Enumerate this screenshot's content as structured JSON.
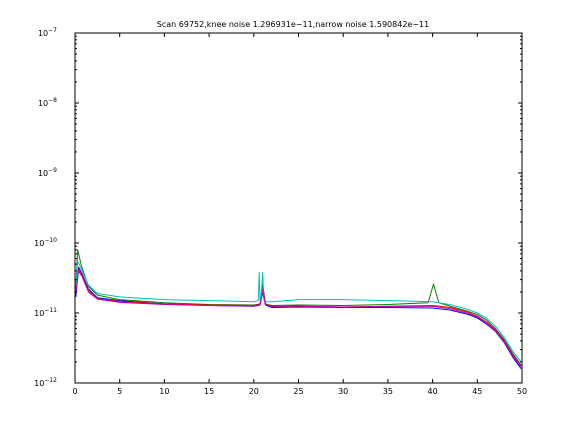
{
  "chart_data": {
    "type": "line",
    "title": "Scan 69752,knee noise 1.296931e−11,narrow noise 1.590842e−11",
    "xlabel": "",
    "ylabel": "",
    "xlim": [
      0,
      50
    ],
    "ylim": [
      1e-12,
      1e-07
    ],
    "yscale": "log",
    "grid": false,
    "x_ticks": [
      0,
      5,
      10,
      15,
      20,
      25,
      30,
      35,
      40,
      45,
      50
    ],
    "x_tick_labels": [
      "0",
      "5",
      "10",
      "15",
      "20",
      "25",
      "30",
      "35",
      "40",
      "45",
      "50"
    ],
    "y_ticks": [
      -12,
      -11,
      -10,
      -9,
      -8,
      -7
    ],
    "y_tick_labels": [
      {
        "base": "10",
        "exp": "−12"
      },
      {
        "base": "10",
        "exp": "−11"
      },
      {
        "base": "10",
        "exp": "−10"
      },
      {
        "base": "10",
        "exp": "−9"
      },
      {
        "base": "10",
        "exp": "−8"
      },
      {
        "base": "10",
        "exp": "−7"
      }
    ],
    "series": [
      {
        "color": "#0000ff",
        "x": [
          0.1,
          0.4,
          0.8,
          1.5,
          2.5,
          5,
          10,
          15,
          20,
          20.7,
          21,
          21.3,
          22,
          25,
          30,
          35,
          40,
          42,
          44,
          45,
          46,
          47,
          48,
          49,
          49.9
        ],
        "y": [
          1.7e-11,
          4.5e-11,
          3.6e-11,
          2.2e-11,
          1.65e-11,
          1.5e-11,
          1.35e-11,
          1.28e-11,
          1.25e-11,
          1.3e-11,
          2e-11,
          1.3e-11,
          1.2e-11,
          1.22e-11,
          1.2e-11,
          1.2e-11,
          1.18e-11,
          1.1e-11,
          9.5e-12,
          8.5e-12,
          7e-12,
          5.5e-12,
          3.8e-12,
          2.3e-12,
          1.6e-12
        ]
      },
      {
        "color": "#008000",
        "x": [
          0.1,
          0.3,
          0.7,
          1.5,
          2.5,
          5,
          10,
          15,
          20,
          20.7,
          21,
          21.3,
          22,
          25,
          30,
          35,
          39.5,
          40.1,
          40.7,
          42,
          44,
          45,
          46,
          47,
          48,
          49,
          49.9
        ],
        "y": [
          2.2e-11,
          8e-11,
          4.8e-11,
          2.4e-11,
          1.8e-11,
          1.55e-11,
          1.4e-11,
          1.32e-11,
          1.3e-11,
          1.35e-11,
          2.6e-11,
          1.35e-11,
          1.28e-11,
          1.3e-11,
          1.28e-11,
          1.32e-11,
          1.4e-11,
          2.6e-11,
          1.4e-11,
          1.25e-11,
          1.05e-11,
          9.5e-12,
          8e-12,
          6e-12,
          4.2e-12,
          2.6e-12,
          1.8e-12
        ]
      },
      {
        "color": "#ff0000",
        "x": [
          0.1,
          0.4,
          0.8,
          1.5,
          2.5,
          5,
          10,
          15,
          20,
          20.7,
          21,
          21.3,
          22,
          25,
          30,
          35,
          40,
          42,
          44,
          45,
          46,
          47,
          48,
          49,
          49.9
        ],
        "y": [
          2e-11,
          4.2e-11,
          3.4e-11,
          2.1e-11,
          1.6e-11,
          1.45e-11,
          1.35e-11,
          1.3e-11,
          1.28e-11,
          1.35e-11,
          2.2e-11,
          1.35e-11,
          1.25e-11,
          1.25e-11,
          1.22e-11,
          1.25e-11,
          1.28e-11,
          1.2e-11,
          1.02e-11,
          9e-12,
          7.5e-12,
          5.8e-12,
          4e-12,
          2.5e-12,
          1.75e-12
        ]
      },
      {
        "color": "#00bfbf",
        "x": [
          0.1,
          0.3,
          0.8,
          1.5,
          2.5,
          5,
          10,
          15,
          20,
          20.5,
          20.6,
          20.7,
          20.8,
          21.0,
          21.1,
          21.2,
          21.5,
          22,
          25,
          30,
          35,
          40,
          42,
          44,
          45,
          46,
          47,
          48,
          49,
          49.9
        ],
        "y": [
          2.4e-11,
          5.5e-11,
          4e-11,
          2.5e-11,
          1.9e-11,
          1.7e-11,
          1.55e-11,
          1.5e-11,
          1.45e-11,
          1.5e-11,
          3.8e-11,
          1.5e-11,
          1.6e-11,
          3.8e-11,
          1.6e-11,
          1.5e-11,
          1.45e-11,
          1.45e-11,
          1.55e-11,
          1.55e-11,
          1.5e-11,
          1.45e-11,
          1.32e-11,
          1.12e-11,
          1e-11,
          8.5e-12,
          6.5e-12,
          4.5e-12,
          2.8e-12,
          2e-12
        ]
      },
      {
        "color": "#bf00bf",
        "x": [
          0.1,
          0.4,
          0.8,
          1.5,
          2.5,
          5,
          10,
          15,
          20,
          20.7,
          21,
          21.3,
          22,
          25,
          30,
          35,
          40,
          42,
          44,
          45,
          46,
          47,
          48,
          49,
          49.9
        ],
        "y": [
          1.9e-11,
          4e-11,
          3.3e-11,
          2e-11,
          1.58e-11,
          1.42e-11,
          1.32e-11,
          1.28e-11,
          1.26e-11,
          1.32e-11,
          2.1e-11,
          1.32e-11,
          1.24e-11,
          1.26e-11,
          1.22e-11,
          1.24e-11,
          1.25e-11,
          1.15e-11,
          9.8e-12,
          8.8e-12,
          7.2e-12,
          5.6e-12,
          3.9e-12,
          2.4e-12,
          1.7e-12
        ]
      }
    ]
  }
}
